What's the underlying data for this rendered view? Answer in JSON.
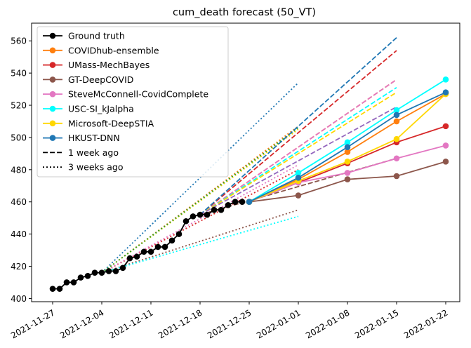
{
  "chart_data": {
    "type": "line",
    "title": "cum_death forecast (50_VT)",
    "xlabel": "",
    "ylabel": "",
    "xlim": [
      "2021-11-24",
      "2022-01-24"
    ],
    "ylim": [
      398,
      571
    ],
    "x_ticks": [
      "2021-11-27",
      "2021-12-04",
      "2021-12-11",
      "2021-12-18",
      "2021-12-25",
      "2022-01-01",
      "2022-01-08",
      "2022-01-15",
      "2022-01-22"
    ],
    "y_ticks": [
      400,
      420,
      440,
      460,
      480,
      500,
      520,
      540,
      560
    ],
    "legend_position": "top-left",
    "legend": [
      {
        "label": "Ground truth",
        "color": "#000000",
        "style": "marker-line"
      },
      {
        "label": "COVIDhub-ensemble",
        "color": "#ff7f0e",
        "style": "marker-line"
      },
      {
        "label": "UMass-MechBayes",
        "color": "#d62728",
        "style": "marker-line"
      },
      {
        "label": "GT-DeepCOVID",
        "color": "#8c564b",
        "style": "marker-line"
      },
      {
        "label": "SteveMcConnell-CovidComplete",
        "color": "#e377c2",
        "style": "marker-line"
      },
      {
        "label": "USC-SI_kJalpha",
        "color": "#00ffff",
        "style": "marker-line"
      },
      {
        "label": "Microsoft-DeepSTIA",
        "color": "#ffd700",
        "style": "marker-line"
      },
      {
        "label": "HKUST-DNN",
        "color": "#1f77b4",
        "style": "marker-line"
      },
      {
        "label": "1 week ago",
        "color": "#000000",
        "style": "dashed"
      },
      {
        "label": "3 weeks ago",
        "color": "#000000",
        "style": "dotted"
      }
    ],
    "ground_truth": {
      "x": [
        "2021-11-27",
        "2021-11-28",
        "2021-11-29",
        "2021-11-30",
        "2021-12-01",
        "2021-12-02",
        "2021-12-03",
        "2021-12-04",
        "2021-12-05",
        "2021-12-06",
        "2021-12-07",
        "2021-12-08",
        "2021-12-09",
        "2021-12-10",
        "2021-12-11",
        "2021-12-12",
        "2021-12-13",
        "2021-12-14",
        "2021-12-15",
        "2021-12-16",
        "2021-12-17",
        "2021-12-18",
        "2021-12-19",
        "2021-12-20",
        "2021-12-21",
        "2021-12-22",
        "2021-12-23",
        "2021-12-24"
      ],
      "y": [
        406,
        406,
        410,
        410,
        413,
        414,
        416,
        416,
        417,
        417,
        419,
        425,
        426,
        429,
        429,
        432,
        432,
        436,
        440,
        448,
        451,
        452,
        452,
        455,
        455,
        458,
        460,
        460
      ]
    },
    "forecasts": [
      {
        "name": "COVIDhub-ensemble",
        "color": "#ff7f0e",
        "x": [
          "2021-12-25",
          "2022-01-01",
          "2022-01-08",
          "2022-01-15",
          "2022-01-22"
        ],
        "y": [
          460,
          474,
          491,
          510,
          527
        ]
      },
      {
        "name": "UMass-MechBayes",
        "color": "#d62728",
        "x": [
          "2021-12-25",
          "2022-01-01",
          "2022-01-08",
          "2022-01-15",
          "2022-01-22"
        ],
        "y": [
          460,
          472,
          484,
          497,
          507
        ]
      },
      {
        "name": "GT-DeepCOVID",
        "color": "#8c564b",
        "x": [
          "2021-12-25",
          "2022-01-01",
          "2022-01-08",
          "2022-01-15",
          "2022-01-22"
        ],
        "y": [
          460,
          464,
          474,
          476,
          485
        ]
      },
      {
        "name": "SteveMcConnell-CovidComplete",
        "color": "#e377c2",
        "x": [
          "2021-12-25",
          "2022-01-01",
          "2022-01-08",
          "2022-01-15",
          "2022-01-22"
        ],
        "y": [
          460,
          472,
          478,
          487,
          495
        ]
      },
      {
        "name": "USC-SI_kJalpha",
        "color": "#00ffff",
        "x": [
          "2021-12-25",
          "2022-01-01",
          "2022-01-08",
          "2022-01-15",
          "2022-01-22"
        ],
        "y": [
          460,
          478,
          497,
          517,
          536
        ]
      },
      {
        "name": "Microsoft-DeepSTIA",
        "color": "#ffd700",
        "x": [
          "2021-12-25",
          "2022-01-01",
          "2022-01-08",
          "2022-01-15",
          "2022-01-22"
        ],
        "y": [
          460,
          473,
          485,
          499,
          527
        ]
      },
      {
        "name": "HKUST-DNN",
        "color": "#1f77b4",
        "x": [
          "2021-12-25",
          "2022-01-01",
          "2022-01-08",
          "2022-01-15",
          "2022-01-22"
        ],
        "y": [
          460,
          475,
          494,
          514,
          528
        ]
      }
    ],
    "forecasts_1_week_ago": [
      {
        "color": "#ff7f0e",
        "x": [
          "2021-12-18",
          "2022-01-15"
        ],
        "y": [
          452,
          536
        ]
      },
      {
        "color": "#d62728",
        "x": [
          "2021-12-18",
          "2022-01-15"
        ],
        "y": [
          452,
          554
        ]
      },
      {
        "color": "#8c564b",
        "x": [
          "2021-12-18",
          "2022-01-15"
        ],
        "y": [
          452,
          487
        ]
      },
      {
        "color": "#e377c2",
        "x": [
          "2021-12-18",
          "2022-01-15"
        ],
        "y": [
          452,
          536
        ]
      },
      {
        "color": "#00ffff",
        "x": [
          "2021-12-18",
          "2022-01-15"
        ],
        "y": [
          452,
          531
        ]
      },
      {
        "color": "#ffd700",
        "x": [
          "2021-12-18",
          "2022-01-15"
        ],
        "y": [
          452,
          528
        ]
      },
      {
        "color": "#1f77b4",
        "x": [
          "2021-12-18",
          "2022-01-15"
        ],
        "y": [
          452,
          562
        ]
      },
      {
        "color": "#9467bd",
        "x": [
          "2021-12-18",
          "2022-01-15"
        ],
        "y": [
          452,
          519
        ]
      }
    ],
    "forecasts_3_weeks_ago": [
      {
        "color": "#ff7f0e",
        "x": [
          "2021-12-04",
          "2022-01-01"
        ],
        "y": [
          416,
          507
        ]
      },
      {
        "color": "#d62728",
        "x": [
          "2021-12-04",
          "2022-01-01"
        ],
        "y": [
          416,
          480
        ]
      },
      {
        "color": "#8c564b",
        "x": [
          "2021-12-04",
          "2022-01-01"
        ],
        "y": [
          416,
          455
        ]
      },
      {
        "color": "#e377c2",
        "x": [
          "2021-12-04",
          "2022-01-01"
        ],
        "y": [
          416,
          483
        ]
      },
      {
        "color": "#00ffff",
        "x": [
          "2021-12-04",
          "2022-01-01"
        ],
        "y": [
          416,
          451
        ]
      },
      {
        "color": "#ffd700",
        "x": [
          "2021-12-04",
          "2022-01-01"
        ],
        "y": [
          416,
          505
        ]
      },
      {
        "color": "#1f77b4",
        "x": [
          "2021-12-04",
          "2022-01-01"
        ],
        "y": [
          416,
          534
        ]
      },
      {
        "color": "#2ca02c",
        "x": [
          "2021-12-04",
          "2022-01-01"
        ],
        "y": [
          416,
          506
        ]
      }
    ]
  }
}
